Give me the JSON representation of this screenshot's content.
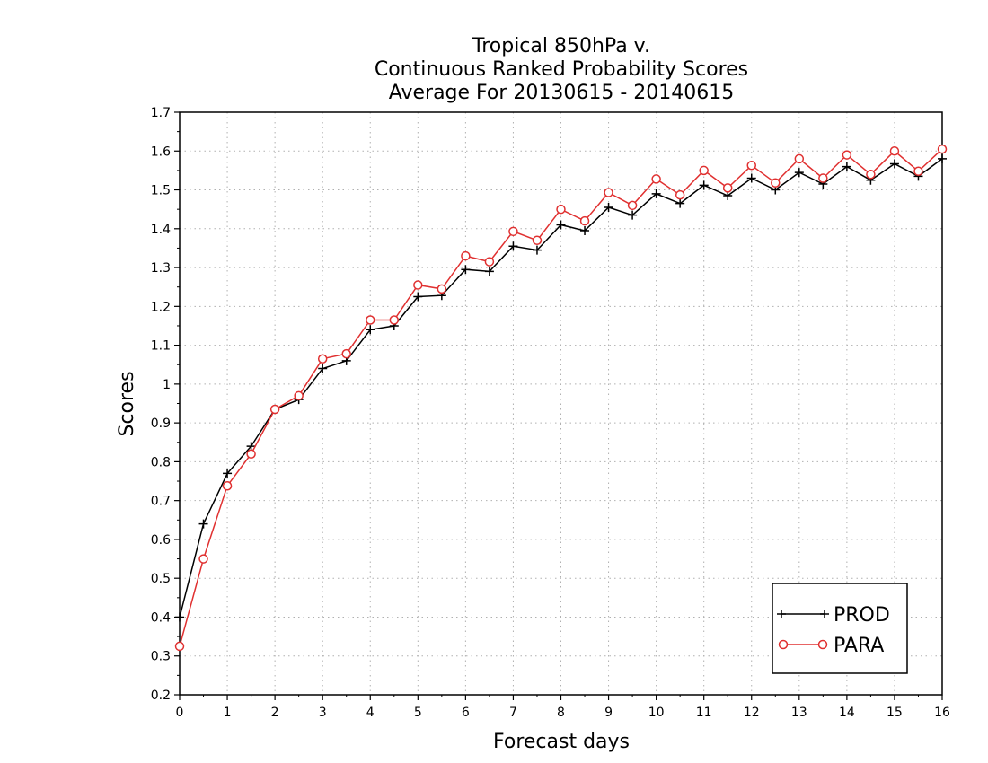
{
  "chart_data": {
    "type": "line",
    "title": [
      "Tropical 850hPa v.",
      "Continuous Ranked Probability Scores",
      "Average For 20130615 - 20140615"
    ],
    "xlabel": "Forecast days",
    "ylabel": "Scores",
    "xlim": [
      0,
      16
    ],
    "ylim": [
      0.2,
      1.7
    ],
    "xticks": [
      0,
      1,
      2,
      3,
      4,
      5,
      6,
      7,
      8,
      9,
      10,
      11,
      12,
      13,
      14,
      15,
      16
    ],
    "xtick_labels": [
      "0",
      "1",
      "2",
      "3",
      "4",
      "5",
      "6",
      "7",
      "8",
      "9",
      "10",
      "11",
      "12",
      "13",
      "14",
      "15",
      "16"
    ],
    "yticks": [
      0.2,
      0.3,
      0.4,
      0.5,
      0.6,
      0.7,
      0.8,
      0.9,
      1.0,
      1.1,
      1.2,
      1.3,
      1.4,
      1.5,
      1.6,
      1.7
    ],
    "ytick_labels": [
      "0.2",
      "0.3",
      "0.4",
      "0.5",
      "0.6",
      "0.7",
      "0.8",
      "0.9",
      "1",
      "1.1",
      "1.2",
      "1.3",
      "1.4",
      "1.5",
      "1.6",
      "1.7"
    ],
    "grid": true,
    "legend_position": "bottom-right",
    "x": [
      0,
      0.5,
      1,
      1.5,
      2,
      2.5,
      3,
      3.5,
      4,
      4.5,
      5,
      5.5,
      6,
      6.5,
      7,
      7.5,
      8,
      8.5,
      9,
      9.5,
      10,
      10.5,
      11,
      11.5,
      12,
      12.5,
      13,
      13.5,
      14,
      14.5,
      15,
      15.5,
      16
    ],
    "series": [
      {
        "name": "PROD",
        "color": "#000000",
        "marker": "plus",
        "values": [
          0.4,
          0.64,
          0.77,
          0.84,
          0.935,
          0.96,
          1.04,
          1.06,
          1.14,
          1.15,
          1.225,
          1.228,
          1.295,
          1.29,
          1.355,
          1.345,
          1.41,
          1.395,
          1.455,
          1.435,
          1.49,
          1.465,
          1.512,
          1.485,
          1.53,
          1.5,
          1.545,
          1.515,
          1.56,
          1.525,
          1.567,
          1.535,
          1.58
        ]
      },
      {
        "name": "PARA",
        "color": "#e03030",
        "marker": "circle",
        "values": [
          0.325,
          0.55,
          0.738,
          0.82,
          0.935,
          0.97,
          1.065,
          1.078,
          1.165,
          1.165,
          1.255,
          1.245,
          1.33,
          1.315,
          1.393,
          1.37,
          1.45,
          1.42,
          1.493,
          1.46,
          1.528,
          1.487,
          1.55,
          1.505,
          1.563,
          1.518,
          1.58,
          1.53,
          1.59,
          1.54,
          1.6,
          1.548,
          1.605
        ]
      }
    ]
  }
}
